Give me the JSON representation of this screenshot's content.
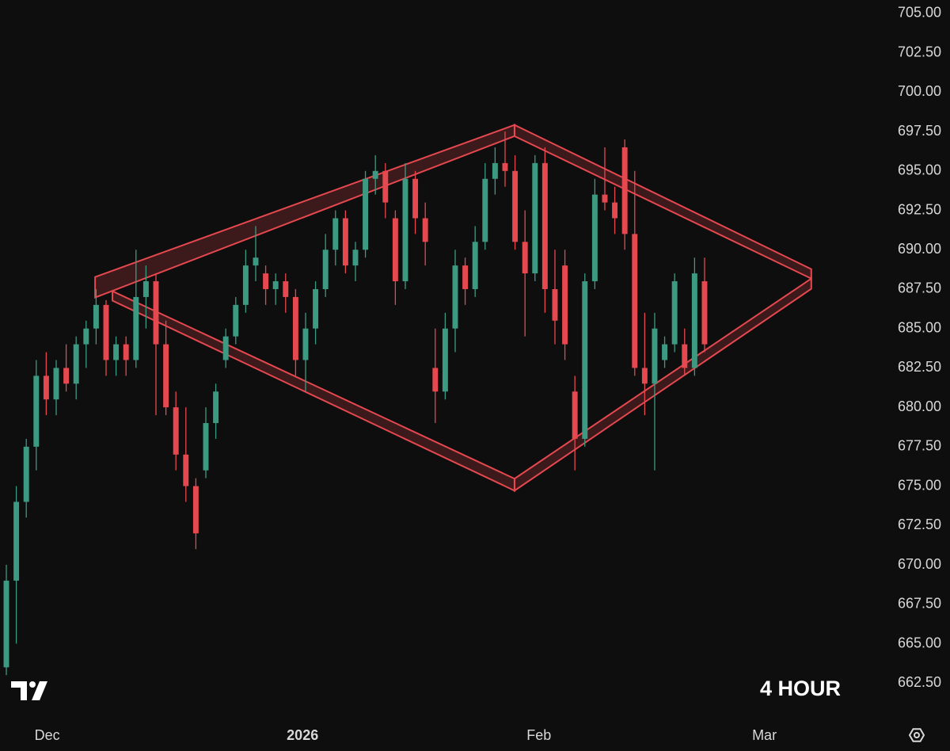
{
  "chart_data": {
    "type": "candlestick",
    "timeframe": "4 HOUR",
    "up_color": "#3d9a82",
    "down_color": "#e5484f",
    "band_color": "#e5484f",
    "categories": [
      null,
      null,
      null,
      null,
      null,
      null,
      null,
      null,
      null,
      null,
      null,
      null,
      null,
      null,
      null,
      null,
      null,
      null,
      null,
      null,
      null,
      null,
      null,
      null,
      null,
      null,
      null,
      null,
      null,
      null,
      null,
      null,
      null,
      null,
      null,
      null,
      null,
      null,
      null,
      null,
      null,
      null,
      null,
      null,
      null,
      null,
      null,
      null,
      null,
      null,
      null,
      null,
      null,
      null,
      null,
      null,
      null,
      null,
      null,
      null,
      null,
      null,
      null,
      null,
      null,
      null,
      null,
      null,
      null,
      null,
      null
    ],
    "open": [
      663.5,
      669,
      674,
      677.5,
      682,
      680.5,
      682.5,
      681.5,
      684,
      685,
      686.5,
      683,
      684,
      683,
      687,
      688,
      684,
      680,
      677,
      675,
      676,
      679,
      683,
      684.5,
      686.5,
      689,
      688.5,
      687.5,
      688,
      687,
      683,
      685,
      687.5,
      690,
      692,
      689,
      690,
      694.5,
      695,
      692,
      688,
      694.5,
      692,
      682.5,
      681,
      685,
      689,
      687.5,
      690.5,
      694.5,
      695.5,
      695,
      690.5,
      688.5,
      695.5,
      687.5,
      689,
      681,
      678,
      688,
      693.5,
      693,
      696.5,
      691,
      682.5,
      681.5,
      683,
      684,
      684,
      682.5,
      688
    ],
    "high": [
      670,
      675,
      678,
      683,
      683.5,
      683,
      684,
      684.5,
      685.5,
      687.5,
      686.8,
      684.5,
      684.5,
      690,
      689,
      688.5,
      685.5,
      681,
      680,
      675.5,
      680,
      681.5,
      685,
      687,
      690,
      691.5,
      689,
      688.5,
      688.5,
      687.5,
      686,
      688,
      691,
      692.5,
      692.5,
      690.5,
      695,
      696,
      695.5,
      692.5,
      695.5,
      695,
      693,
      685,
      686,
      690,
      689.5,
      691.5,
      695.5,
      696.5,
      697.5,
      696,
      692.5,
      696,
      696.5,
      690,
      690,
      682,
      688.5,
      694.5,
      696.5,
      694,
      697,
      695,
      686,
      686,
      684.5,
      688.5,
      685,
      689.5,
      689.5
    ],
    "low": [
      663,
      665,
      673,
      676,
      679.5,
      679.5,
      681,
      680.5,
      682.5,
      684,
      682,
      682,
      682,
      682.5,
      685,
      679.5,
      679.5,
      676,
      674,
      671,
      675.5,
      678,
      682.5,
      684,
      686,
      688,
      686.5,
      686.5,
      686,
      682,
      681,
      684,
      687,
      689,
      688.5,
      688,
      689.5,
      693.5,
      692,
      686.5,
      687.5,
      691,
      689,
      679,
      680.5,
      683.5,
      686.5,
      687,
      690,
      693.5,
      694,
      690,
      684.5,
      688,
      686,
      684,
      683,
      676,
      677.5,
      687.5,
      692.5,
      691,
      690,
      682,
      679.5,
      676,
      682.5,
      683.5,
      682,
      682,
      683.5
    ],
    "close": [
      669,
      674,
      677.5,
      682,
      680.5,
      682.5,
      681.5,
      684,
      685,
      686.5,
      683,
      684,
      683,
      687,
      688,
      684,
      680,
      677,
      675,
      672,
      679,
      681,
      684.5,
      686.5,
      689,
      689.5,
      687.5,
      688,
      687,
      683,
      685,
      687.5,
      690,
      692,
      689,
      690,
      694.5,
      695,
      693,
      688,
      694.5,
      692,
      690.5,
      681,
      685,
      689,
      687.5,
      690.5,
      694.5,
      695.5,
      695,
      690.5,
      688.5,
      695.5,
      687.5,
      685.5,
      684,
      678,
      688,
      693.5,
      693,
      692,
      691,
      682.5,
      681.5,
      685,
      684,
      688,
      682.5,
      688.5,
      684
    ],
    "bands": [
      {
        "x": [
          8.9,
          50.95
        ],
        "upper": [
          688.27,
          697.92
        ],
        "lower": [
          686.97,
          697.21
        ]
      },
      {
        "x": [
          50.95,
          80.7
        ],
        "upper": [
          697.92,
          688.77
        ],
        "lower": [
          697.21,
          688.17
        ]
      },
      {
        "x": [
          10.64,
          50.95
        ],
        "upper": [
          687.37,
          675.47
        ],
        "lower": [
          686.77,
          674.71
        ]
      },
      {
        "x": [
          50.95,
          80.7
        ],
        "upper": [
          675.47,
          688.17
        ],
        "lower": [
          674.71,
          687.52
        ]
      }
    ],
    "xlim": [
      -0.635,
      86.67
    ],
    "xticks": [
      {
        "value": 4.1,
        "label": "Dec"
      },
      {
        "value": 29.7,
        "label": "2026"
      },
      {
        "value": 53.4,
        "label": "Feb"
      },
      {
        "value": 76,
        "label": "Mar"
      }
    ],
    "ylim": [
      660.35,
      705.85
    ],
    "yticks": [
      {
        "value": 662.5,
        "label": "662.50"
      },
      {
        "value": 665,
        "label": "665.00"
      },
      {
        "value": 667.5,
        "label": "667.50"
      },
      {
        "value": 670,
        "label": "670.00"
      },
      {
        "value": 672.5,
        "label": "672.50"
      },
      {
        "value": 675,
        "label": "675.00"
      },
      {
        "value": 677.5,
        "label": "677.50"
      },
      {
        "value": 680,
        "label": "680.00"
      },
      {
        "value": 682.5,
        "label": "682.50"
      },
      {
        "value": 685,
        "label": "685.00"
      },
      {
        "value": 687.5,
        "label": "687.50"
      },
      {
        "value": 690,
        "label": "690.00"
      },
      {
        "value": 692.5,
        "label": "692.50"
      },
      {
        "value": 695,
        "label": "695.00"
      },
      {
        "value": 697.5,
        "label": "697.50"
      },
      {
        "value": 700,
        "label": "700.00"
      },
      {
        "value": 702.5,
        "label": "702.50"
      },
      {
        "value": 705,
        "label": "705.00"
      }
    ]
  }
}
